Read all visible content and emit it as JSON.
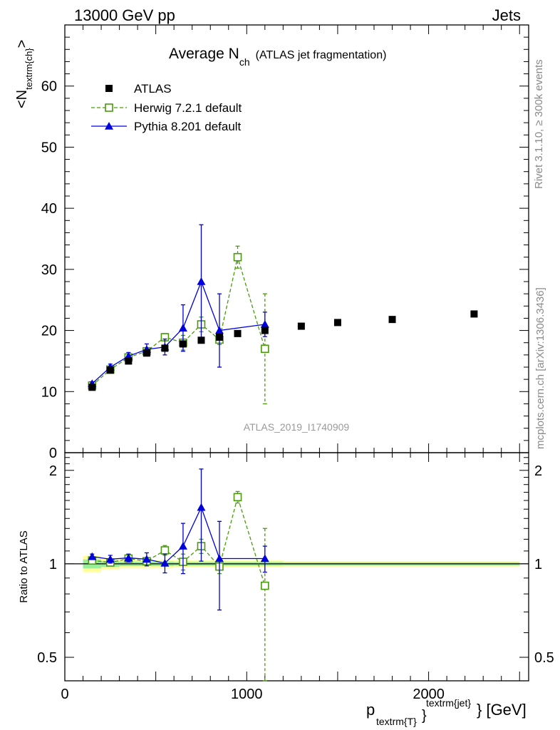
{
  "header": {
    "left": "13000 GeV pp",
    "right": "Jets"
  },
  "title": {
    "main": "Average N",
    "sub": "ch",
    "note": "(ATLAS jet fragmentation)"
  },
  "side_labels": {
    "rivet": "Rivet 3.1.10, ≥ 300k events",
    "mcplots": "mcplots.cern.ch [arXiv:1306.3436]"
  },
  "watermark": "ATLAS_2019_I1740909",
  "ylabel_main": {
    "pre": "<N",
    "sub": "textrm{ch}",
    "post": ">"
  },
  "ylabel_ratio": "Ratio to ATLAS",
  "xlabel": {
    "p": "p",
    "sub": "textrm{T}",
    "brace": "}",
    "sup": "textrm{jet}",
    "unit": "} [GeV]"
  },
  "legend": [
    {
      "label": "ATLAS",
      "color": "#000000",
      "marker": "filled-square"
    },
    {
      "label": "Herwig 7.2.1 default",
      "color": "#4a9a0c",
      "marker": "open-square",
      "line": "dashed"
    },
    {
      "label": "Pythia 8.201 default",
      "color": "#0000dd",
      "marker": "filled-triangle",
      "line": "solid"
    }
  ],
  "chart_data": {
    "type": "scatter",
    "x_range": [
      0,
      2550
    ],
    "x_ticks": [
      {
        "v": 0,
        "label": "0"
      },
      {
        "v": 1000,
        "label": "1000"
      },
      {
        "v": 2000,
        "label": "2000"
      }
    ],
    "main": {
      "y_range": [
        0,
        70
      ],
      "y_ticks": [
        {
          "v": 0,
          "label": "0"
        },
        {
          "v": 10,
          "label": "10"
        },
        {
          "v": 20,
          "label": "20"
        },
        {
          "v": 30,
          "label": "30"
        },
        {
          "v": 40,
          "label": "40"
        },
        {
          "v": 50,
          "label": "50"
        },
        {
          "v": 60,
          "label": "60"
        }
      ]
    },
    "ratio": {
      "y_range": [
        0.42,
        2.28
      ],
      "log": true,
      "y_ticks": [
        {
          "v": 0.5,
          "label": "0.5"
        },
        {
          "v": 1,
          "label": "1"
        },
        {
          "v": 2,
          "label": "2"
        }
      ],
      "band": [
        {
          "x0": 100,
          "x1": 200,
          "lo": 0.94,
          "hi": 1.06
        },
        {
          "x0": 200,
          "x1": 300,
          "lo": 0.96,
          "hi": 1.04
        },
        {
          "x0": 300,
          "x1": 400,
          "lo": 0.97,
          "hi": 1.03
        },
        {
          "x0": 400,
          "x1": 600,
          "lo": 0.97,
          "hi": 1.03
        },
        {
          "x0": 600,
          "x1": 1200,
          "lo": 0.975,
          "hi": 1.025
        },
        {
          "x0": 1200,
          "x1": 2500,
          "lo": 0.98,
          "hi": 1.02
        }
      ]
    },
    "series": [
      {
        "name": "ATLAS",
        "x": [
          150,
          250,
          350,
          450,
          550,
          650,
          750,
          850,
          950,
          1100,
          1300,
          1500,
          1800,
          2250
        ],
        "y": [
          10.7,
          13.5,
          15.0,
          16.3,
          17.1,
          17.8,
          18.4,
          18.9,
          19.5,
          20.0,
          20.7,
          21.3,
          21.8,
          22.7
        ]
      },
      {
        "name": "Herwig 7.2.1 default",
        "x": [
          150,
          250,
          350,
          450,
          550,
          650,
          750,
          850,
          950,
          1100
        ],
        "y": [
          11.0,
          13.6,
          15.6,
          16.6,
          18.9,
          18.0,
          21.0,
          18.5,
          32.0,
          17.0
        ],
        "err": [
          0.3,
          0.4,
          0.4,
          0.5,
          0.6,
          1.2,
          1.2,
          0.8,
          1.8,
          9.0
        ],
        "ratio": [
          1.025,
          1.01,
          1.04,
          1.02,
          1.105,
          1.015,
          1.14,
          0.98,
          1.64,
          0.85
        ],
        "ratio_err": [
          0.02,
          0.02,
          0.02,
          0.02,
          0.04,
          0.06,
          0.06,
          0.05,
          0.07,
          0.45
        ]
      },
      {
        "name": "Pythia 8.201 default",
        "x": [
          150,
          250,
          350,
          450,
          550,
          650,
          750,
          850,
          1100
        ],
        "y": [
          11.3,
          14.0,
          15.8,
          16.9,
          17.3,
          20.4,
          28.0,
          20.0,
          21.0
        ],
        "err": [
          0.3,
          0.5,
          0.6,
          0.9,
          1.3,
          3.8,
          9.3,
          6.0,
          2.0
        ],
        "ratio": [
          1.055,
          1.035,
          1.045,
          1.035,
          1.005,
          1.14,
          1.52,
          1.04,
          1.04
        ],
        "ratio_err": [
          0.02,
          0.03,
          0.03,
          0.05,
          0.07,
          0.21,
          0.5,
          0.33,
          0.1
        ]
      }
    ]
  }
}
